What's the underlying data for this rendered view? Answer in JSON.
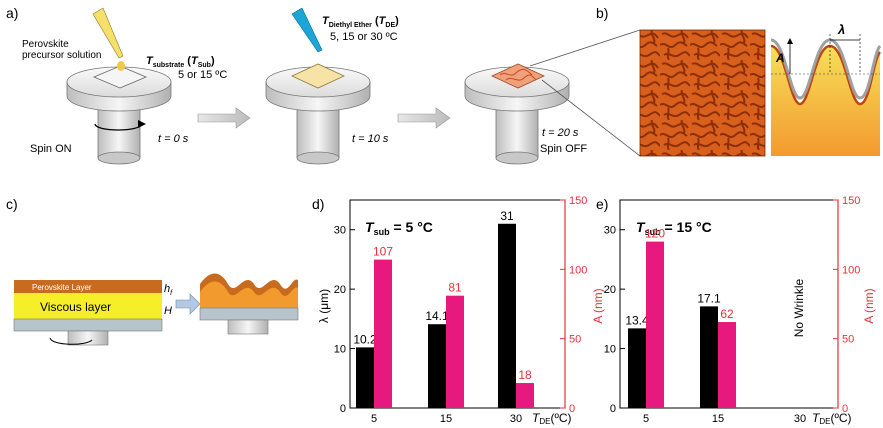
{
  "panel_a": {
    "label": "a)",
    "precursor_line1": "Perovskite",
    "precursor_line2": "precursor solution",
    "tsub_main": "T",
    "tsub_sub": "substrate",
    "tsub_paren_open": " (",
    "tsub_paren_T": "T",
    "tsub_paren_sub": "Sub",
    "tsub_paren_close": ")",
    "sub_temps": "5 or 15 ºC",
    "tde_main": "T",
    "tde_sub": "Diethyl Ether",
    "tde_paren_open": " (",
    "tde_paren_T": "T",
    "tde_paren_sub": "DE",
    "tde_paren_close": ")",
    "de_temps": "5, 15 or 30 ºC",
    "t0": "t = 0 s",
    "t10": "t = 10 s",
    "t20": "t = 20 s",
    "spin_on": "Spin ON",
    "spin_off": "Spin OFF"
  },
  "panel_b": {
    "label": "b)",
    "lambda": "λ",
    "amplitude": "A"
  },
  "panel_c": {
    "label": "c)",
    "perovskite_layer": "Perovskite Layer",
    "viscous_layer": "Viscous layer",
    "h_label": "h",
    "h_sub": "f",
    "H_label": "H"
  },
  "colors": {
    "black_bar": "#000000",
    "pink_bar": "#e8197e",
    "red_axis": "#e8303a",
    "orange": "#f39a2e",
    "yellow": "#f7ee2a",
    "wrinkle_dark": "#b8440c"
  },
  "chart_data": [
    {
      "type": "bar",
      "label": "d)",
      "annotation": "T",
      "annotation_sub": "sub",
      "annotation_value": " = 5 °C",
      "categories": [
        "5",
        "15",
        "30"
      ],
      "xlabel_main": "T",
      "xlabel_sub": "DE",
      "xlabel_unit": "(ºC)",
      "ylabel_left": "λ (μm)",
      "ylabel_right": "A (nm)",
      "ylim_left": [
        0,
        35
      ],
      "ylim_right": [
        0,
        150
      ],
      "yticks_left": [
        "0",
        "10",
        "20",
        "30"
      ],
      "yticks_right": [
        "0",
        "50",
        "100",
        "150"
      ],
      "series": [
        {
          "axis": "left",
          "values": [
            10.2,
            14.1,
            31
          ],
          "labels": [
            "10.2",
            "14.1",
            "31"
          ]
        },
        {
          "axis": "right",
          "values": [
            107,
            81,
            18
          ],
          "labels": [
            "107",
            "81",
            "18"
          ]
        }
      ],
      "no_data_text": ""
    },
    {
      "type": "bar",
      "label": "e)",
      "annotation": "T",
      "annotation_sub": "sub",
      "annotation_value": " = 15 °C",
      "categories": [
        "5",
        "15",
        "30"
      ],
      "xlabel_main": "T",
      "xlabel_sub": "DE",
      "xlabel_unit": "(ºC)",
      "ylabel_left": "",
      "ylabel_right": "A (nm)",
      "ylim_left": [
        0,
        35
      ],
      "ylim_right": [
        0,
        150
      ],
      "yticks_left": [
        "0",
        "10",
        "20",
        "30"
      ],
      "yticks_right": [
        "0",
        "50",
        "100",
        "150"
      ],
      "series": [
        {
          "axis": "left",
          "values": [
            13.4,
            17.1,
            null
          ],
          "labels": [
            "13.4",
            "17.1",
            ""
          ]
        },
        {
          "axis": "right",
          "values": [
            120,
            62,
            null
          ],
          "labels": [
            "120",
            "62",
            ""
          ]
        }
      ],
      "no_data_text": "No Wrinkle"
    }
  ]
}
